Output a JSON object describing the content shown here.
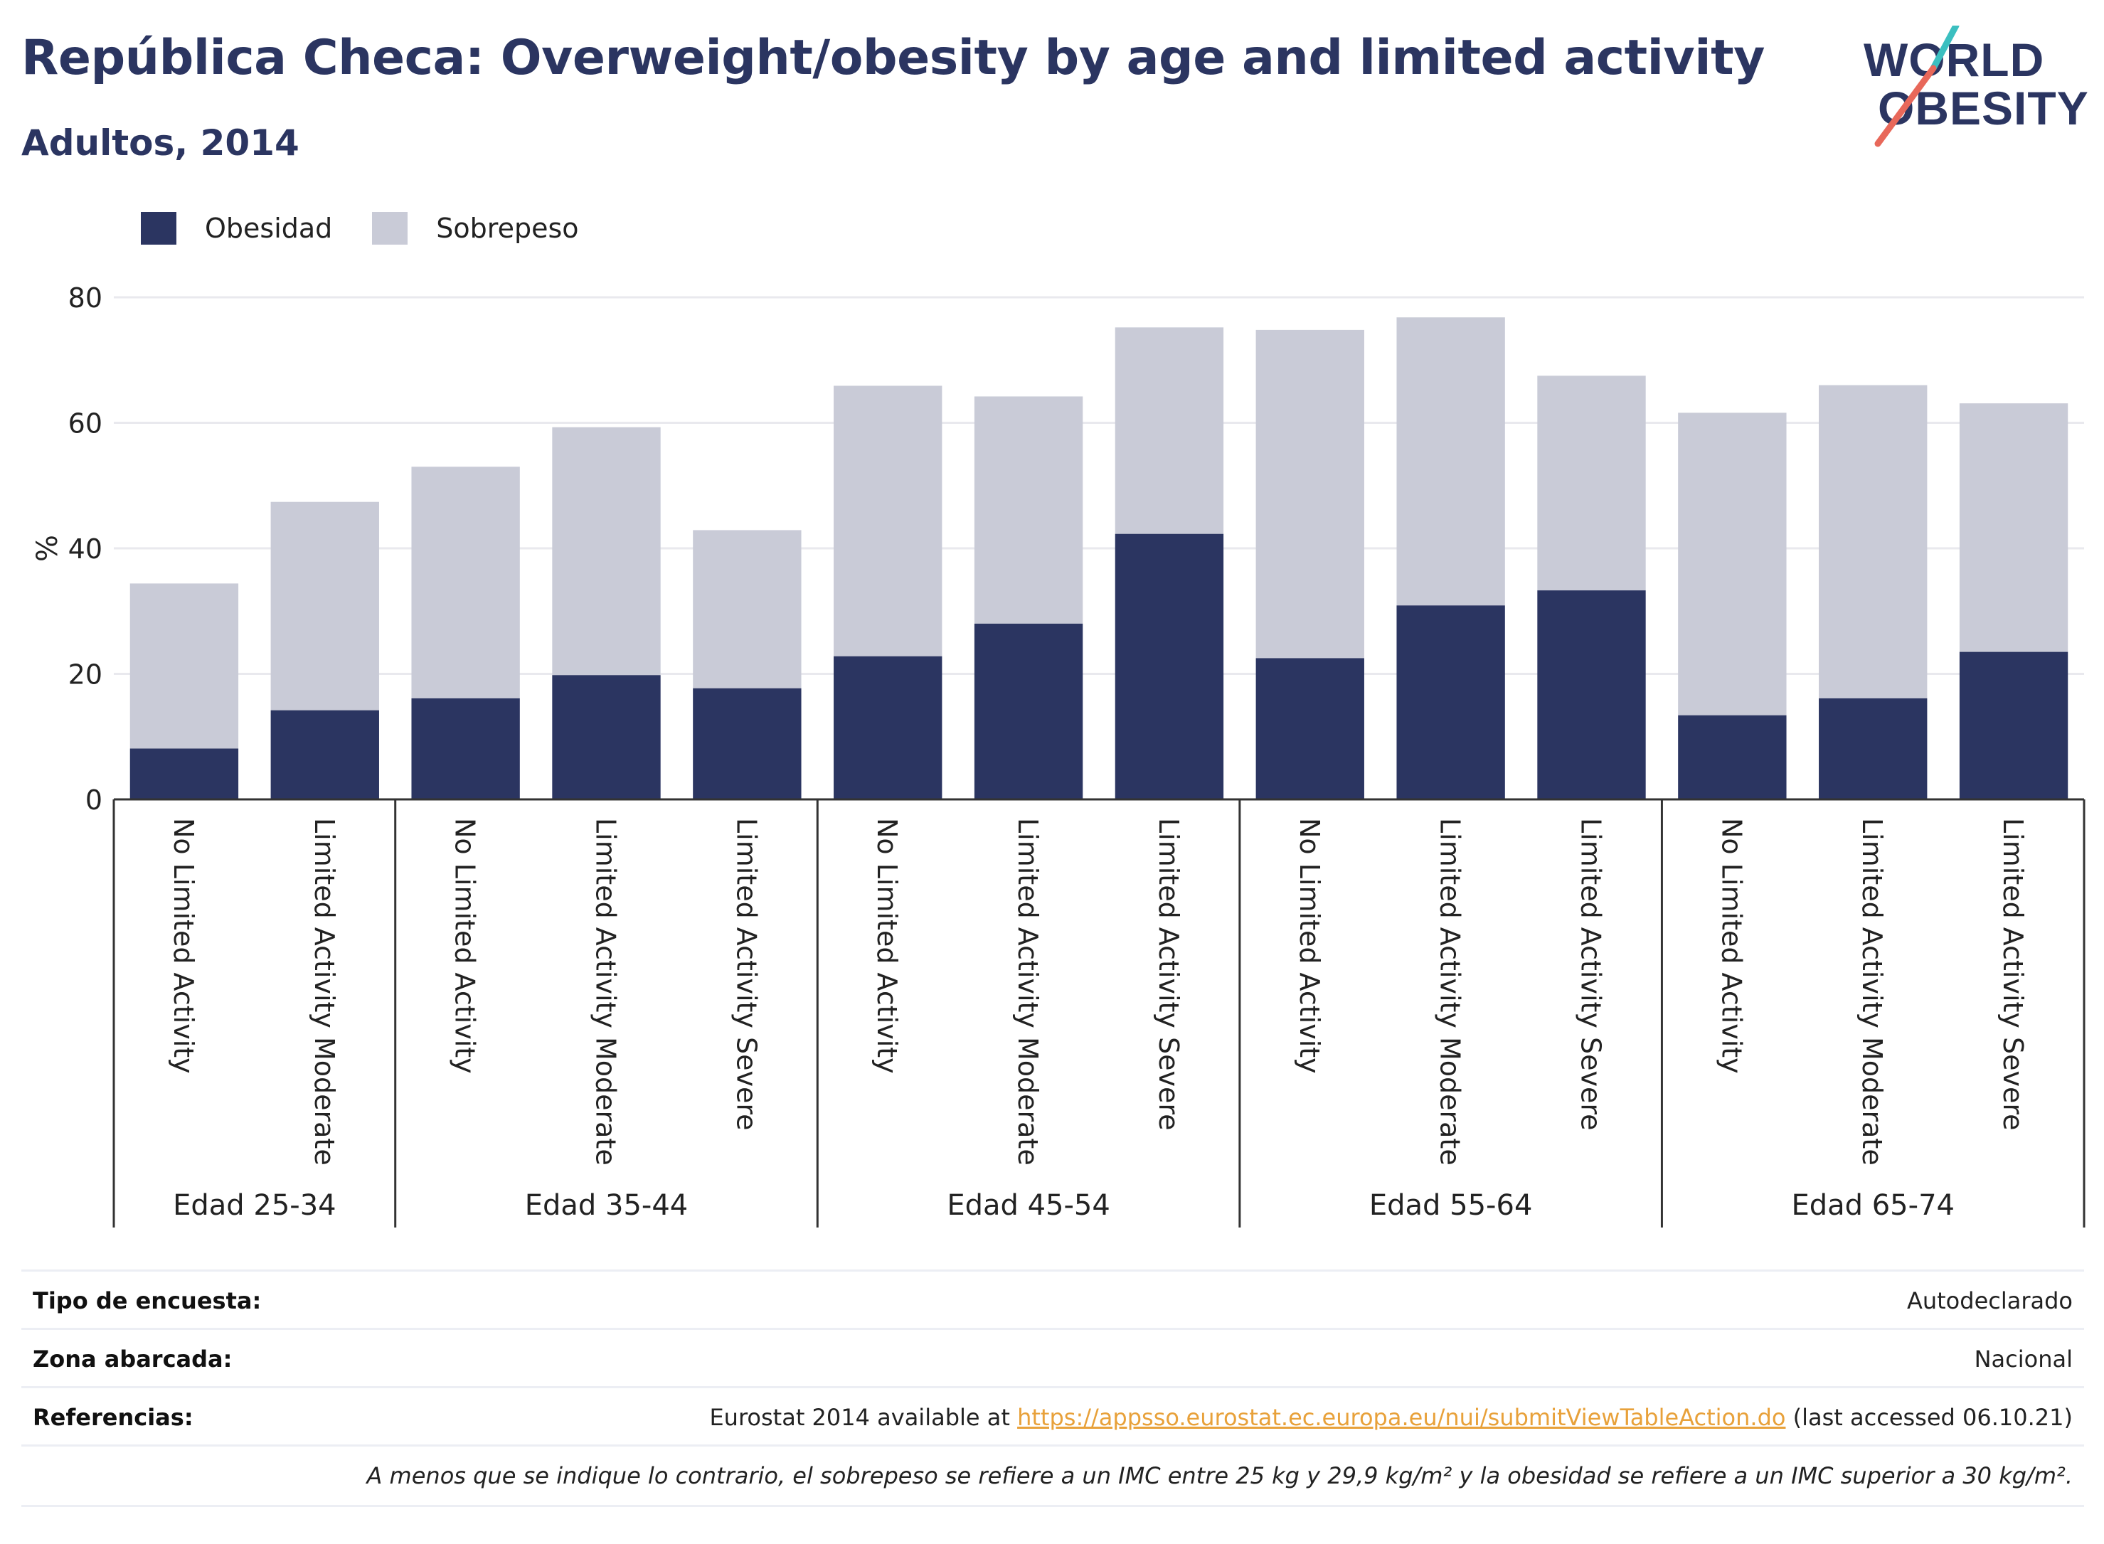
{
  "header": {
    "title": "República Checa: Overweight/obesity by age and limited activity",
    "subtitle": "Adultos, 2014"
  },
  "logo": {
    "line1": "WORLD",
    "line2": "OBESITY",
    "accent_teal": "#3bbfc0",
    "accent_coral": "#e8685a"
  },
  "colors": {
    "obesity": "#2b3561",
    "overweight": "#c9cbd7",
    "axis": "#333333",
    "grid": "#e9e9ee"
  },
  "legend": [
    {
      "label": "Obesidad",
      "color": "#2b3561"
    },
    {
      "label": "Sobrepeso",
      "color": "#c9cbd7"
    }
  ],
  "chart_data": {
    "type": "bar",
    "stacked": true,
    "ylabel": "%",
    "ylim": [
      0,
      80
    ],
    "yticks": [
      0,
      20,
      40,
      60,
      80
    ],
    "grid": true,
    "legend_position": "top-left",
    "groups": [
      {
        "label": "Edad 25-34",
        "categories": [
          "No Limited Activity",
          "Limited Activity Moderate"
        ]
      },
      {
        "label": "Edad 35-44",
        "categories": [
          "No Limited Activity",
          "Limited Activity Moderate",
          "Limited Activity Severe"
        ]
      },
      {
        "label": "Edad 45-54",
        "categories": [
          "No Limited Activity",
          "Limited Activity Moderate",
          "Limited Activity Severe"
        ]
      },
      {
        "label": "Edad 55-64",
        "categories": [
          "No Limited Activity",
          "Limited Activity Moderate",
          "Limited Activity Severe"
        ]
      },
      {
        "label": "Edad 65-74",
        "categories": [
          "No Limited Activity",
          "Limited Activity Moderate",
          "Limited Activity Severe"
        ]
      }
    ],
    "series": [
      {
        "name": "Obesidad",
        "values": [
          8.1,
          14.2,
          16.1,
          19.8,
          17.7,
          22.8,
          28.0,
          42.3,
          22.5,
          30.9,
          33.3,
          13.4,
          16.1,
          23.5
        ]
      },
      {
        "name": "Sobrepeso",
        "values": [
          26.3,
          33.2,
          36.9,
          39.5,
          25.2,
          43.1,
          36.2,
          32.9,
          52.3,
          45.9,
          34.2,
          48.2,
          49.9,
          39.6
        ]
      }
    ]
  },
  "info": {
    "survey_type_label": "Tipo de encuesta:",
    "survey_type_value": "Autodeclarado",
    "area_label": "Zona abarcada:",
    "area_value": "Nacional",
    "refs_label": "Referencias:",
    "refs_prefix": "Eurostat 2014 available at ",
    "refs_link": "https://appsso.eurostat.ec.europa.eu/nui/submitViewTableAction.do",
    "refs_suffix": " (last accessed 06.10.21)",
    "note": "A menos que se indique lo contrario, el sobrepeso se refiere a un IMC entre 25 kg y 29,9 kg/m² y la obesidad se refiere a un IMC superior a 30 kg/m²."
  }
}
